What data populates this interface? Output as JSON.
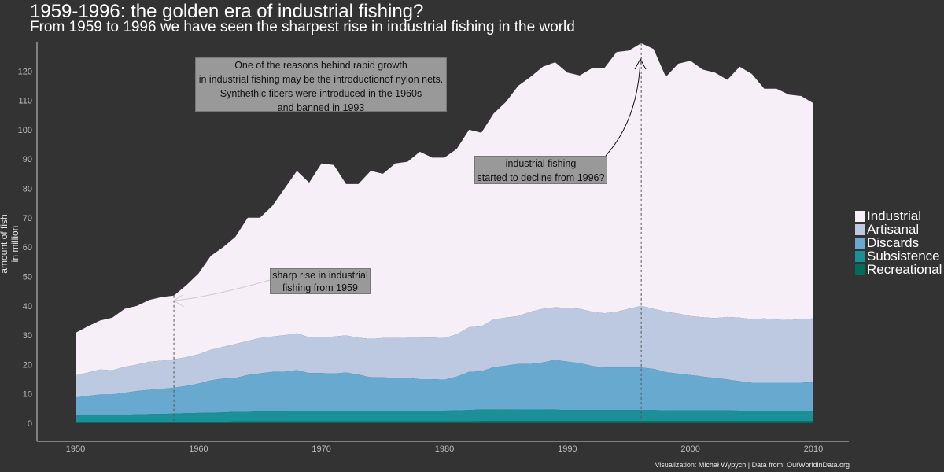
{
  "title": "1959-1996: the golden era of industrial fishing?",
  "subtitle": "From 1959 to 1996 we have seen the sharpest rise in industrial fishing in the world",
  "ylabel": "amount of fish\nin million",
  "caption": "Visualization: Michał Wypych | Data from: OurWorldinData.org",
  "annotations": [
    "One of the reasons behind rapid growth\nin industrial fishing may be the introductionof nylon nets.\nSynthethic fibers were introduced in the 1960s\nand banned in 1993",
    "industrial fishing\nstarted to decline from 1996?",
    "sharp rise in industrial\nfishing from 1959"
  ],
  "chart_data": {
    "type": "area",
    "stacked": true,
    "title": "1959-1996: the golden era of industrial fishing?",
    "subtitle": "From 1959 to 1996 we have seen the sharpest rise in industrial fishing in the world",
    "xlabel": "",
    "ylabel": "amount of fish in million",
    "xlim": [
      1950,
      2010
    ],
    "ylim": [
      0,
      130
    ],
    "x_ticks": [
      1950,
      1960,
      1970,
      1980,
      1990,
      2000,
      2010
    ],
    "y_ticks": [
      0,
      10,
      20,
      30,
      40,
      50,
      60,
      70,
      80,
      90,
      100,
      110,
      120
    ],
    "x": [
      1950,
      1951,
      1952,
      1953,
      1954,
      1955,
      1956,
      1957,
      1958,
      1959,
      1960,
      1961,
      1962,
      1963,
      1964,
      1965,
      1966,
      1967,
      1968,
      1969,
      1970,
      1971,
      1972,
      1973,
      1974,
      1975,
      1976,
      1977,
      1978,
      1979,
      1980,
      1981,
      1982,
      1983,
      1984,
      1985,
      1986,
      1987,
      1988,
      1989,
      1990,
      1991,
      1992,
      1993,
      1994,
      1995,
      1996,
      1997,
      1998,
      1999,
      2000,
      2001,
      2002,
      2003,
      2004,
      2005,
      2006,
      2007,
      2008,
      2009,
      2010
    ],
    "totals": [
      30.8,
      33,
      35,
      36,
      39,
      40,
      42,
      43,
      43.5,
      47,
      51,
      57,
      60,
      63.5,
      70,
      70,
      74,
      80,
      86,
      82,
      88.5,
      88,
      81.5,
      81.5,
      86,
      85,
      88.5,
      89,
      92.5,
      90.5,
      90.5,
      93.5,
      100,
      99,
      105.5,
      109.5,
      115,
      118,
      121.5,
      123,
      119.5,
      118.5,
      121,
      121,
      126.5,
      127,
      129.5,
      127.5,
      118,
      122.5,
      123.5,
      120.5,
      119.5,
      117,
      121.5,
      119,
      114,
      114,
      112,
      111.5,
      109
    ],
    "series": [
      {
        "name": "Recreational",
        "values": [
          0.5,
          0.5,
          0.5,
          0.5,
          0.5,
          0.5,
          0.5,
          0.5,
          0.5,
          0.5,
          0.5,
          0.5,
          0.5,
          0.6,
          0.6,
          0.6,
          0.6,
          0.6,
          0.6,
          0.6,
          0.6,
          0.6,
          0.6,
          0.6,
          0.6,
          0.6,
          0.6,
          0.6,
          0.6,
          0.6,
          0.6,
          0.6,
          0.6,
          0.7,
          0.7,
          0.7,
          0.7,
          0.7,
          0.7,
          0.7,
          0.7,
          0.7,
          0.7,
          0.7,
          0.7,
          0.7,
          0.7,
          0.7,
          0.7,
          0.7,
          0.7,
          0.7,
          0.7,
          0.7,
          0.7,
          0.7,
          0.7,
          0.7,
          0.7,
          0.7,
          0.7
        ]
      },
      {
        "name": "Subsistence",
        "values": [
          2.3,
          2.3,
          2.3,
          2.3,
          2.4,
          2.5,
          2.6,
          2.7,
          2.8,
          2.9,
          3.0,
          3.1,
          3.2,
          3.3,
          3.3,
          3.4,
          3.4,
          3.4,
          3.5,
          3.5,
          3.5,
          3.5,
          3.5,
          3.5,
          3.5,
          3.5,
          3.5,
          3.6,
          3.6,
          3.6,
          3.7,
          3.8,
          3.9,
          4.0,
          3.9,
          3.9,
          4.0,
          4.0,
          4.0,
          3.9,
          3.8,
          3.8,
          3.8,
          3.8,
          3.8,
          3.8,
          3.8,
          3.8,
          3.7,
          3.7,
          3.7,
          3.7,
          3.7,
          3.7,
          3.6,
          3.6,
          3.6,
          3.6,
          3.6,
          3.6,
          3.6
        ]
      },
      {
        "name": "Discards",
        "values": [
          6.0,
          6.5,
          7.0,
          7.0,
          7.5,
          8.0,
          8.3,
          8.5,
          8.8,
          9.3,
          10.0,
          11.0,
          11.5,
          11.5,
          12.5,
          13.0,
          13.5,
          13.5,
          14.0,
          13.0,
          13.0,
          12.8,
          13.2,
          12.5,
          11.5,
          11.5,
          11.3,
          11.2,
          10.8,
          10.8,
          10.5,
          11.5,
          13.0,
          13.0,
          14.5,
          15.0,
          15.5,
          15.5,
          16.0,
          17.0,
          16.5,
          16.0,
          15.0,
          14.5,
          14.5,
          14.5,
          14.5,
          14.0,
          13.0,
          12.5,
          12.0,
          11.5,
          11.0,
          10.5,
          10.0,
          9.5,
          9.5,
          9.5,
          9.5,
          9.5,
          9.7
        ]
      },
      {
        "name": "Artisanal",
        "values": [
          7.5,
          8.0,
          8.5,
          8.2,
          8.8,
          9.0,
          9.6,
          9.6,
          9.7,
          9.8,
          10.0,
          10.4,
          10.8,
          11.6,
          11.6,
          12.0,
          12.0,
          12.5,
          12.5,
          12.2,
          12.2,
          12.6,
          12.6,
          12.5,
          13.1,
          13.4,
          13.6,
          13.7,
          14.1,
          14.2,
          14.2,
          14.4,
          15.2,
          15.3,
          16.3,
          16.4,
          16.3,
          17.8,
          18.3,
          17.9,
          18.3,
          18.5,
          18.5,
          18.5,
          19.0,
          20.0,
          21.0,
          20.5,
          20.6,
          20.5,
          20.1,
          20.2,
          20.4,
          21.3,
          21.7,
          21.7,
          21.9,
          21.5,
          21.4,
          21.7,
          21.7
        ]
      },
      {
        "name": "Industrial",
        "values": [
          14.5,
          15.7,
          16.7,
          18.0,
          19.8,
          20.0,
          21.0,
          21.7,
          21.7,
          24.5,
          27.5,
          32.0,
          34.0,
          36.5,
          42.0,
          41.0,
          44.5,
          50.0,
          55.4,
          52.7,
          59.2,
          58.5,
          51.6,
          52.4,
          57.3,
          56.0,
          59.5,
          60.0,
          63.4,
          61.3,
          61.5,
          63.2,
          67.3,
          66.0,
          70.1,
          73.5,
          78.5,
          80.0,
          82.5,
          83.5,
          80.2,
          79.5,
          83.0,
          83.5,
          88.5,
          88.0,
          89.5,
          88.5,
          80.0,
          85.1,
          87.0,
          84.4,
          83.7,
          80.8,
          85.5,
          83.5,
          78.3,
          78.7,
          76.8,
          76.0,
          73.3
        ]
      }
    ],
    "colors": {
      "Industrial": "#f6eff7",
      "Artisanal": "#bdc9e1",
      "Discards": "#67a9cf",
      "Subsistence": "#1c9099",
      "Recreational": "#016c59"
    },
    "highlight_years": [
      1958,
      1996
    ],
    "legend_position": "right",
    "grid": false
  },
  "legend": [
    {
      "name": "Industrial",
      "color": "#f6eff7"
    },
    {
      "name": "Artisanal",
      "color": "#bdc9e1"
    },
    {
      "name": "Discards",
      "color": "#67a9cf"
    },
    {
      "name": "Subsistence",
      "color": "#1c9099"
    },
    {
      "name": "Recreational",
      "color": "#016c59"
    }
  ]
}
